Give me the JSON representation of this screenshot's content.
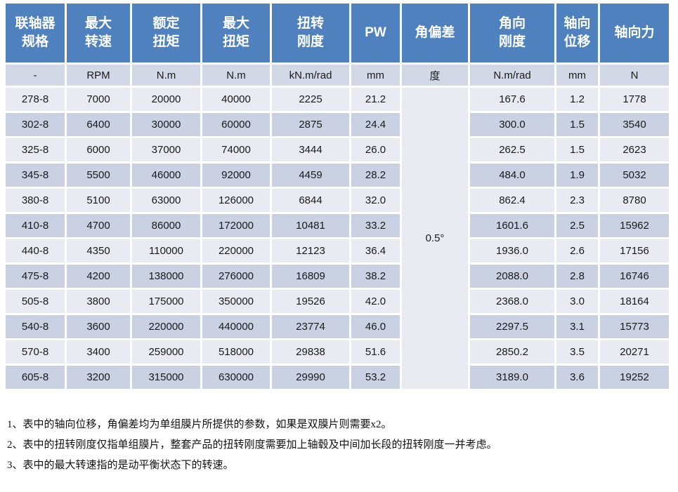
{
  "table": {
    "headers": [
      "联轴器\n规格",
      "最大\n转速",
      "额定\n扭矩",
      "最大\n扭矩",
      "扭转\n刚度",
      "PW",
      "角偏差",
      "角向\n刚度",
      "轴向\n位移",
      "轴向力"
    ],
    "units": [
      "-",
      "RPM",
      "N.m",
      "N.m",
      "kN.m/rad",
      "mm",
      "度",
      "N.m/rad",
      "mm",
      "N"
    ],
    "angular_deviation": {
      "value": "0.5°"
    },
    "rows": [
      [
        "278-8",
        "7000",
        "20000",
        "40000",
        "2225",
        "21.2",
        "167.6",
        "1.2",
        "1778"
      ],
      [
        "302-8",
        "6400",
        "30000",
        "60000",
        "2875",
        "24.4",
        "300.0",
        "1.5",
        "3540"
      ],
      [
        "325-8",
        "6000",
        "37000",
        "74000",
        "3444",
        "26.0",
        "262.5",
        "1.5",
        "2623"
      ],
      [
        "345-8",
        "5500",
        "46000",
        "92000",
        "4459",
        "28.2",
        "484.0",
        "1.9",
        "5032"
      ],
      [
        "380-8",
        "5100",
        "63000",
        "126000",
        "6844",
        "32.0",
        "862.4",
        "2.3",
        "8780"
      ],
      [
        "410-8",
        "4700",
        "86000",
        "172000",
        "10481",
        "33.2",
        "1601.6",
        "2.5",
        "15962"
      ],
      [
        "440-8",
        "4350",
        "110000",
        "220000",
        "12123",
        "36.4",
        "1936.0",
        "2.6",
        "17156"
      ],
      [
        "475-8",
        "4200",
        "138000",
        "276000",
        "16809",
        "38.2",
        "2088.0",
        "2.8",
        "16746"
      ],
      [
        "505-8",
        "3800",
        "175000",
        "350000",
        "19526",
        "42.0",
        "2368.0",
        "3.0",
        "18164"
      ],
      [
        "540-8",
        "3600",
        "220000",
        "440000",
        "23774",
        "46.0",
        "2297.5",
        "3.1",
        "15773"
      ],
      [
        "570-8",
        "3400",
        "259000",
        "518000",
        "29838",
        "51.6",
        "2850.2",
        "3.5",
        "20271"
      ],
      [
        "605-8",
        "3200",
        "315000",
        "630000",
        "29990",
        "53.2",
        "3189.0",
        "3.6",
        "19252"
      ]
    ]
  },
  "notes": [
    "1、表中的轴向位移，角偏差均为单组膜片所提供的参数，如果是双膜片则需要x2。",
    "2、表中的扭转刚度仅指单组膜片，整套产品的扭转刚度需要加上轴毂及中间加长段的扭转刚度一并考虑。",
    "3、表中的最大转速指的是动平衡状态下的转速。"
  ],
  "colors": {
    "header_bg": "#4E81BD",
    "header_text": "#FFFFFF",
    "unit_row_bg": "#D2D8E5",
    "row_light_bg": "#E9EBF3",
    "row_dark_bg": "#C9D1E3",
    "merged_cell_bg": "#E8EAF2",
    "cell_text": "#1A1A1A"
  }
}
